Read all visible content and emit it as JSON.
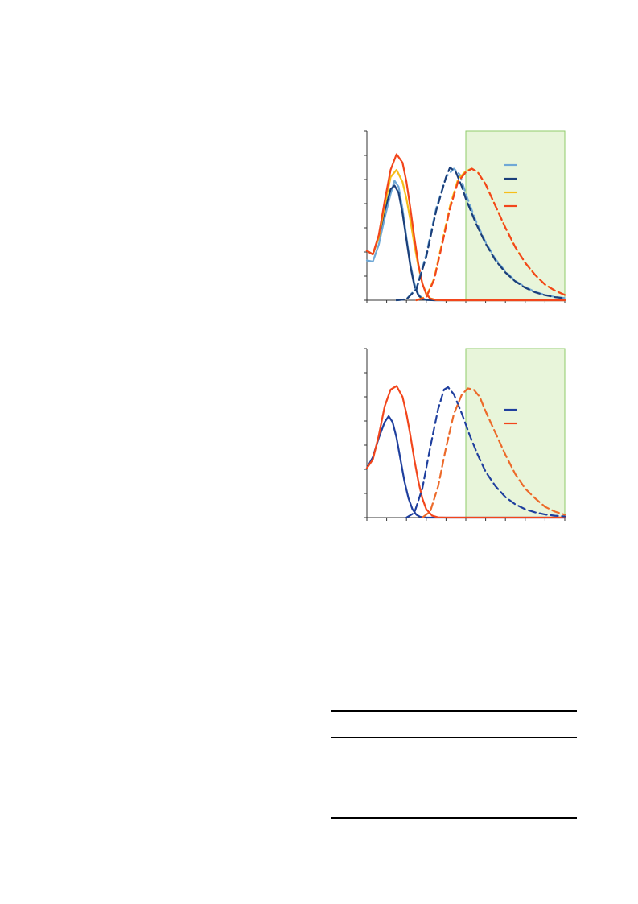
{
  "colors": {
    "light_blue": "#6FA8D6",
    "dark_blue": "#1B3F7A",
    "navy": "#1F3F9E",
    "yellow": "#F6BE1A",
    "orange_red": "#F2461C",
    "orange": "#EC6A2A",
    "shade_fill": "#E8F5DA",
    "shade_border": "#8FCB6A",
    "axis": "#333333"
  },
  "chart_data": [
    {
      "type": "line",
      "xlim": [
        0,
        10
      ],
      "ylim": [
        0,
        7
      ],
      "grid": false,
      "legend_position": "top-right",
      "shaded_region": {
        "x_from": 5,
        "x_to": 10
      },
      "x_ticks": [
        0,
        1,
        2,
        3,
        4,
        5,
        6,
        7,
        8,
        9,
        10
      ],
      "y_ticks": [
        0,
        1,
        2,
        3,
        4,
        5,
        6,
        7
      ],
      "series": [
        {
          "key": "abs_light_blue",
          "color": "light_blue",
          "style": "solid",
          "legend": true,
          "x": [
            0,
            0.3,
            0.6,
            0.9,
            1.2,
            1.4,
            1.6,
            1.8,
            2.0,
            2.2,
            2.4,
            2.6,
            2.8,
            3.0,
            3.4,
            4.0,
            10
          ],
          "y": [
            1.65,
            1.6,
            2.3,
            3.4,
            4.4,
            4.95,
            4.7,
            3.8,
            2.6,
            1.5,
            0.7,
            0.25,
            0.08,
            0.02,
            0.0,
            0.0,
            0.0
          ]
        },
        {
          "key": "abs_dark_blue",
          "color": "dark_blue",
          "style": "solid",
          "legend": true,
          "x": [
            0,
            0.3,
            0.6,
            0.9,
            1.2,
            1.4,
            1.6,
            1.8,
            2.0,
            2.2,
            2.4,
            2.6,
            2.8,
            3.0,
            3.4,
            4.0,
            10
          ],
          "y": [
            2.05,
            1.9,
            2.6,
            3.7,
            4.6,
            4.75,
            4.45,
            3.6,
            2.5,
            1.4,
            0.6,
            0.2,
            0.06,
            0.01,
            0.0,
            0.0,
            0.0
          ]
        },
        {
          "key": "abs_yellow",
          "color": "yellow",
          "style": "solid",
          "legend": true,
          "x": [
            0,
            0.3,
            0.6,
            0.9,
            1.2,
            1.5,
            1.8,
            2.0,
            2.2,
            2.4,
            2.6,
            2.8,
            3.0,
            3.2,
            3.5,
            4.0,
            10
          ],
          "y": [
            2.05,
            1.9,
            2.6,
            3.9,
            5.1,
            5.4,
            4.9,
            4.2,
            3.3,
            2.3,
            1.4,
            0.7,
            0.28,
            0.08,
            0.01,
            0.0,
            0.0
          ]
        },
        {
          "key": "abs_orange_red",
          "color": "orange_red",
          "style": "solid",
          "legend": true,
          "x": [
            0,
            0.3,
            0.6,
            0.9,
            1.2,
            1.5,
            1.8,
            2.0,
            2.2,
            2.4,
            2.6,
            2.8,
            3.0,
            3.2,
            3.5,
            4.0,
            10
          ],
          "y": [
            2.05,
            1.9,
            2.7,
            4.1,
            5.4,
            6.05,
            5.7,
            4.9,
            3.8,
            2.6,
            1.5,
            0.7,
            0.25,
            0.07,
            0.01,
            0.0,
            0.0
          ]
        },
        {
          "key": "em_light_blue",
          "color": "light_blue",
          "style": "dashed",
          "legend": false,
          "x": [
            1.5,
            2.0,
            2.5,
            3.0,
            3.5,
            4.0,
            4.4,
            4.7,
            5.0,
            5.5,
            6.0,
            6.5,
            7.0,
            7.5,
            8.0,
            8.5,
            9.0,
            9.5,
            10.0
          ],
          "y": [
            0.0,
            0.05,
            0.5,
            1.9,
            3.8,
            5.1,
            5.45,
            5.2,
            4.4,
            3.3,
            2.4,
            1.7,
            1.2,
            0.8,
            0.55,
            0.35,
            0.22,
            0.14,
            0.09
          ]
        },
        {
          "key": "em_dark_blue",
          "color": "dark_blue",
          "style": "dashed",
          "legend": false,
          "x": [
            1.5,
            2.0,
            2.5,
            3.0,
            3.5,
            4.0,
            4.2,
            4.5,
            4.8,
            5.0,
            5.5,
            6.0,
            6.5,
            7.0,
            7.5,
            8.0,
            8.5,
            9.0,
            9.5,
            10.0
          ],
          "y": [
            0.0,
            0.04,
            0.45,
            1.8,
            3.7,
            5.1,
            5.5,
            5.3,
            4.7,
            4.2,
            3.2,
            2.35,
            1.65,
            1.15,
            0.78,
            0.52,
            0.33,
            0.21,
            0.13,
            0.08
          ]
        },
        {
          "key": "em_yellow",
          "color": "yellow",
          "style": "dashed",
          "legend": false,
          "x": [
            2.5,
            3.0,
            3.4,
            3.8,
            4.2,
            4.6,
            5.0,
            5.3,
            5.6,
            6.0,
            6.5,
            7.0,
            7.5,
            8.0,
            8.5,
            9.0,
            9.5,
            10.0
          ],
          "y": [
            0.0,
            0.15,
            0.9,
            2.4,
            3.9,
            5.0,
            5.35,
            5.45,
            5.3,
            4.8,
            3.9,
            3.0,
            2.2,
            1.55,
            1.05,
            0.65,
            0.4,
            0.22
          ]
        },
        {
          "key": "em_orange_red",
          "color": "orange_red",
          "style": "dashed",
          "legend": false,
          "x": [
            2.5,
            3.0,
            3.4,
            3.8,
            4.2,
            4.6,
            5.0,
            5.3,
            5.6,
            6.0,
            6.5,
            7.0,
            7.5,
            8.0,
            8.5,
            9.0,
            9.5,
            10.0
          ],
          "y": [
            0.0,
            0.12,
            0.85,
            2.3,
            3.8,
            4.9,
            5.3,
            5.45,
            5.3,
            4.8,
            3.9,
            3.0,
            2.2,
            1.55,
            1.05,
            0.65,
            0.4,
            0.22
          ]
        }
      ]
    },
    {
      "type": "line",
      "xlim": [
        0,
        10
      ],
      "ylim": [
        0,
        7
      ],
      "grid": false,
      "legend_position": "top-right",
      "shaded_region": {
        "x_from": 5,
        "x_to": 10
      },
      "x_ticks": [
        0,
        1,
        2,
        3,
        4,
        5,
        6,
        7,
        8,
        9,
        10
      ],
      "y_ticks": [
        0,
        1,
        2,
        3,
        4,
        5,
        6,
        7
      ],
      "series": [
        {
          "key": "abs_navy",
          "color": "navy",
          "style": "solid",
          "legend": true,
          "x": [
            0,
            0.3,
            0.6,
            0.9,
            1.1,
            1.3,
            1.5,
            1.7,
            1.9,
            2.1,
            2.3,
            2.5,
            2.7,
            3.0,
            3.4,
            10
          ],
          "y": [
            2.05,
            2.5,
            3.3,
            3.95,
            4.2,
            3.95,
            3.3,
            2.4,
            1.5,
            0.8,
            0.35,
            0.12,
            0.03,
            0.0,
            0.0,
            0.0
          ]
        },
        {
          "key": "abs_orange_red",
          "color": "orange_red",
          "style": "solid",
          "legend": true,
          "x": [
            0,
            0.3,
            0.6,
            0.9,
            1.2,
            1.5,
            1.8,
            2.0,
            2.2,
            2.4,
            2.6,
            2.8,
            3.0,
            3.3,
            3.6,
            4.0,
            10
          ],
          "y": [
            2.05,
            2.4,
            3.4,
            4.6,
            5.3,
            5.45,
            5.0,
            4.3,
            3.4,
            2.4,
            1.5,
            0.8,
            0.35,
            0.08,
            0.01,
            0.0,
            0.0
          ]
        },
        {
          "key": "em_navy",
          "color": "navy",
          "style": "dashed",
          "legend": false,
          "x": [
            2.0,
            2.4,
            2.8,
            3.2,
            3.6,
            3.9,
            4.1,
            4.4,
            4.8,
            5.2,
            5.6,
            6.0,
            6.5,
            7.0,
            7.5,
            8.0,
            8.5,
            9.0,
            9.5,
            10.0
          ],
          "y": [
            0.0,
            0.2,
            1.2,
            2.9,
            4.5,
            5.3,
            5.4,
            5.1,
            4.3,
            3.4,
            2.6,
            1.9,
            1.3,
            0.85,
            0.55,
            0.35,
            0.22,
            0.13,
            0.08,
            0.05
          ]
        },
        {
          "key": "em_orange",
          "color": "orange",
          "style": "dashed",
          "legend": false,
          "x": [
            2.8,
            3.2,
            3.6,
            4.0,
            4.4,
            4.8,
            5.1,
            5.4,
            5.7,
            6.0,
            6.5,
            7.0,
            7.5,
            8.0,
            8.5,
            9.0,
            9.5,
            10.0
          ],
          "y": [
            0.0,
            0.25,
            1.3,
            2.9,
            4.3,
            5.1,
            5.35,
            5.3,
            5.0,
            4.4,
            3.5,
            2.6,
            1.8,
            1.2,
            0.8,
            0.45,
            0.25,
            0.12
          ]
        }
      ]
    }
  ]
}
